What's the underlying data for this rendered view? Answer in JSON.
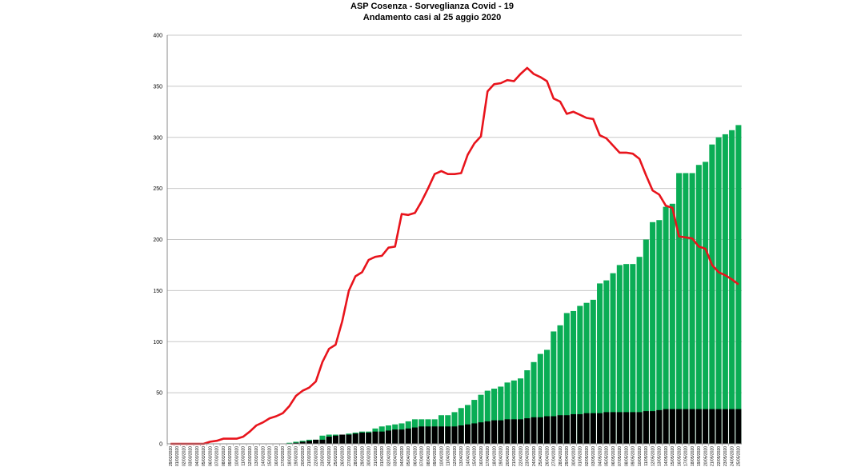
{
  "chart_data": {
    "type": "bar+line",
    "title": "ASP Cosenza - Sorveglianza Covid - 19",
    "subtitle": "Andamento casi al 25  aggio 2020",
    "xlabel": "",
    "ylabel": "",
    "ylim": [
      0,
      400
    ],
    "yticks": [
      0,
      50,
      100,
      150,
      200,
      250,
      300,
      350,
      400
    ],
    "grid": "horizontal",
    "legend": "none",
    "colors": {
      "line": "#e8141c",
      "green_bars": "#0aad55",
      "black_bars": "#000000",
      "grid": "#c8c8c8"
    },
    "categories": [
      "29/02/2020",
      "01/03/2020",
      "02/03/2020",
      "03/03/2020",
      "04/03/2020",
      "05/03/2020",
      "06/03/2020",
      "07/03/2020",
      "08/03/2020",
      "09/03/2020",
      "10/03/2020",
      "11/03/2020",
      "12/03/2020",
      "13/03/2020",
      "14/03/2020",
      "15/03/2020",
      "16/03/2020",
      "17/03/2020",
      "18/03/2020",
      "19/03/2020",
      "20/03/2020",
      "21/03/2020",
      "22/03/2020",
      "23/03/2020",
      "24/03/2020",
      "25/03/2020",
      "26/03/2020",
      "27/03/2020",
      "28/03/2020",
      "29/03/2020",
      "30/03/2020",
      "31/03/2020",
      "01/04/2020",
      "02/04/2020",
      "03/04/2020",
      "04/04/2020",
      "05/04/2020",
      "06/04/2020",
      "07/04/2020",
      "08/04/2020",
      "09/04/2020",
      "10/04/2020",
      "11/04/2020",
      "12/04/2020",
      "13/04/2020",
      "14/04/2020",
      "15/04/2020",
      "16/04/2020",
      "17/04/2020",
      "18/04/2020",
      "19/04/2020",
      "20/04/2020",
      "21/04/2020",
      "22/04/2020",
      "23/04/2020",
      "24/04/2020",
      "25/04/2020",
      "26/04/2020",
      "27/04/2020",
      "28/04/2020",
      "29/04/2020",
      "30/04/2020",
      "01/05/2020",
      "02/05/2020",
      "03/05/2020",
      "04/05/2020",
      "05/05/2020",
      "06/05/2020",
      "07/05/2020",
      "08/05/2020",
      "09/05/2020",
      "10/05/2020",
      "11/05/2020",
      "12/05/2020",
      "13/05/2020",
      "14/05/2020",
      "15/05/2020",
      "16/05/2020",
      "17/05/2020",
      "18/05/2020",
      "19/05/2020",
      "20/05/2020",
      "21/05/2020",
      "22/05/2020",
      "23/05/2020",
      "24/05/2020",
      "25/05/2020"
    ],
    "series": [
      {
        "type": "bar",
        "color": "#0aad55",
        "values": [
          0,
          0,
          0,
          0,
          0,
          0,
          0,
          0,
          0,
          0,
          0,
          0,
          0,
          0,
          0,
          0,
          0,
          0,
          1,
          2,
          3,
          4,
          4,
          8,
          9,
          9,
          9,
          10,
          11,
          12,
          12,
          15,
          17,
          18,
          19,
          20,
          22,
          24,
          24,
          24,
          24,
          28,
          28,
          31,
          35,
          38,
          43,
          48,
          52,
          54,
          56,
          60,
          62,
          64,
          72,
          80,
          88,
          92,
          110,
          116,
          128,
          130,
          135,
          138,
          141,
          157,
          160,
          167,
          175,
          176,
          176,
          183,
          200,
          217,
          219,
          232,
          235,
          265,
          265,
          265,
          273,
          276,
          293,
          300,
          303,
          307,
          312
        ]
      },
      {
        "type": "bar",
        "color": "#000000",
        "values": [
          0,
          0,
          0,
          0,
          0,
          0,
          0,
          0,
          0,
          0,
          0,
          0,
          0,
          0,
          0,
          0,
          0,
          0,
          0,
          1,
          2,
          3,
          4,
          4,
          7,
          8,
          9,
          9,
          10,
          11,
          11,
          12,
          12,
          13,
          14,
          14,
          15,
          16,
          17,
          17,
          17,
          17,
          17,
          17,
          18,
          19,
          20,
          21,
          22,
          23,
          23,
          24,
          24,
          24,
          25,
          26,
          26,
          27,
          27,
          28,
          28,
          29,
          29,
          30,
          30,
          30,
          31,
          31,
          31,
          31,
          31,
          31,
          32,
          32,
          33,
          34,
          34,
          34,
          34,
          34,
          34,
          34,
          34,
          34,
          34,
          34,
          34
        ]
      },
      {
        "type": "line",
        "color": "#e8141c",
        "values": [
          0,
          0,
          0,
          0,
          0,
          0,
          2,
          3,
          5,
          5,
          5,
          7,
          12,
          18,
          21,
          25,
          27,
          30,
          37,
          47,
          52,
          55,
          61,
          80,
          93,
          97,
          120,
          150,
          164,
          168,
          180,
          183,
          184,
          192,
          193,
          225,
          224,
          226,
          237,
          250,
          264,
          267,
          264,
          264,
          265,
          283,
          294,
          301,
          345,
          352,
          353,
          356,
          355,
          362,
          368,
          362,
          359,
          355,
          338,
          335,
          323,
          325,
          322,
          319,
          318,
          302,
          299,
          292,
          285,
          285,
          284,
          279,
          263,
          248,
          244,
          233,
          231,
          203,
          202,
          201,
          193,
          191,
          175,
          168,
          165,
          161,
          156
        ]
      }
    ]
  }
}
